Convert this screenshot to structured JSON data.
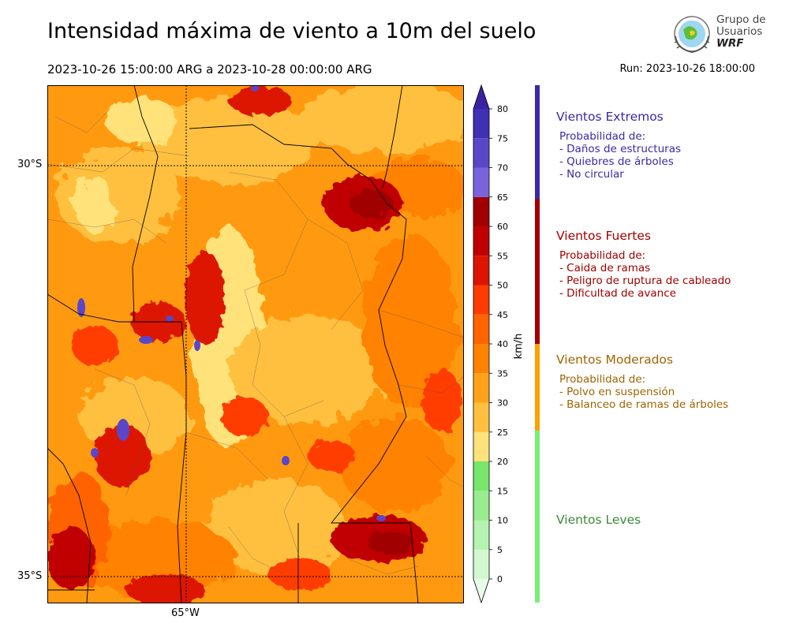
{
  "header": {
    "title": "Intensidad máxima de viento a 10m del suelo",
    "period": "2023-10-26 15:00:00 ARG  a  2023-10-28 00:00:00 ARG",
    "run": "Run: 2023-10-26 18:00:00"
  },
  "logo": {
    "line1": "Grupo de",
    "line2": "Usuarios",
    "line3": "WRF"
  },
  "map": {
    "lat_labels": [
      "30°S",
      "35°S"
    ],
    "lon_labels": [
      "65°W"
    ]
  },
  "colorbar": {
    "unit": "km/h",
    "ticks": [
      "0",
      "5",
      "10",
      "15",
      "20",
      "25",
      "30",
      "35",
      "40",
      "45",
      "50",
      "55",
      "60",
      "65",
      "70",
      "75",
      "80"
    ],
    "colors": [
      "#e8fde8",
      "#d2f8d0",
      "#b6f2b0",
      "#98ec8e",
      "#78e66c",
      "#ffe27a",
      "#ffc040",
      "#ffa21a",
      "#ff8200",
      "#ff6400",
      "#ff3c00",
      "#dc1400",
      "#c00000",
      "#a00000",
      "#7a64dc",
      "#5a46c8",
      "#4030b4",
      "#3a22a0"
    ]
  },
  "legend": {
    "categories": [
      {
        "title": "Vientos Extremos",
        "color": "#3a2aa8",
        "lines": [
          "Probabilidad de:",
          "- Daños de estructuras",
          "- Quiebres de árboles",
          "- No circular"
        ]
      },
      {
        "title": "Vientos Fuertes",
        "color": "#a00000",
        "lines": [
          "Probabilidad de:",
          "- Caida de ramas",
          "- Peligro de ruptura de cableado",
          "- Dificultad de avance"
        ]
      },
      {
        "title": "Vientos Moderados",
        "color": "#a06400",
        "bar_color": "#ffa000",
        "lines": [
          "Probabilidad de:",
          "- Polvo en suspensión",
          "- Balanceo de ramas de árboles"
        ]
      },
      {
        "title": "Vientos Leves",
        "color": "#3a8a3a",
        "bar_color": "#78f078",
        "lines": []
      }
    ]
  }
}
